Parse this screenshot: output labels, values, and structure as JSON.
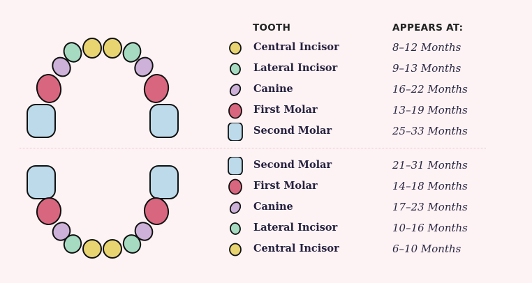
{
  "colors": {
    "central_incisor": "#e8d470",
    "lateral_incisor": "#a6dbc2",
    "canine": "#cdb1d8",
    "first_molar": "#d9667f",
    "second_molar": "#bcdaea",
    "outline": "#111111"
  },
  "header": {
    "tooth": "TOOTH",
    "appears_at": "APPEARS AT:"
  },
  "upper": [
    {
      "tooth": "central_incisor",
      "name": "Central Incisor",
      "age": "8–12 Months"
    },
    {
      "tooth": "lateral_incisor",
      "name": "Lateral Incisor",
      "age": "9–13 Months"
    },
    {
      "tooth": "canine",
      "name": "Canine",
      "age": "16–22 Months"
    },
    {
      "tooth": "first_molar",
      "name": "First Molar",
      "age": "13–19 Months"
    },
    {
      "tooth": "second_molar",
      "name": "Second Molar",
      "age": "25–33 Months"
    }
  ],
  "lower": [
    {
      "tooth": "second_molar",
      "name": "Second Molar",
      "age": "21–31 Months"
    },
    {
      "tooth": "first_molar",
      "name": "First Molar",
      "age": "14–18 Months"
    },
    {
      "tooth": "canine",
      "name": "Canine",
      "age": "17–23 Months"
    },
    {
      "tooth": "lateral_incisor",
      "name": "Lateral Incisor",
      "age": "10–16 Months"
    },
    {
      "tooth": "central_incisor",
      "name": "Central Incisor",
      "age": "6–10 Months"
    }
  ]
}
